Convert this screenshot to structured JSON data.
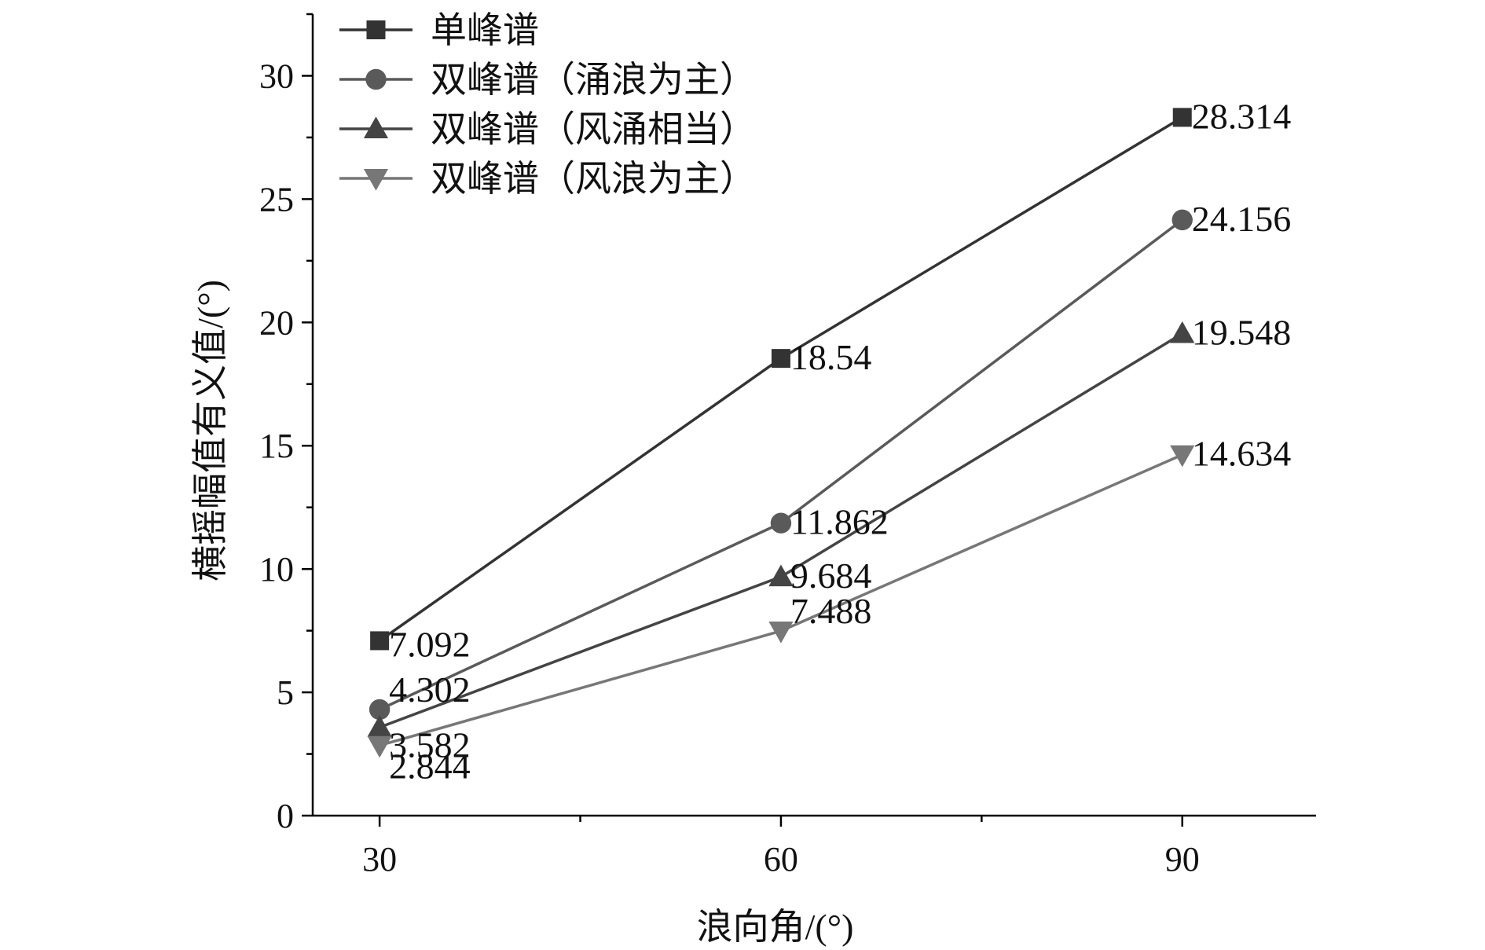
{
  "chart_data": {
    "type": "line",
    "x": [
      30,
      60,
      90
    ],
    "xlabel": "浪向角/(°)",
    "ylabel": "横摇幅值有义值/(°)",
    "xlim": [
      25,
      100
    ],
    "ylim": [
      0,
      32.5
    ],
    "xticks": [
      30,
      60,
      90
    ],
    "yticks": [
      0,
      5,
      10,
      15,
      20,
      25,
      30
    ],
    "grid": false,
    "legend": "top-left",
    "series": [
      {
        "name": "单峰谱",
        "values": [
          7.092,
          18.54,
          28.314
        ],
        "labels": [
          "7.092",
          "18.54",
          "28.314"
        ],
        "marker": "square",
        "color": "#333333"
      },
      {
        "name": "双峰谱（涌浪为主）",
        "values": [
          4.302,
          11.862,
          24.156
        ],
        "labels": [
          "4.302",
          "11.862",
          "24.156"
        ],
        "marker": "circle",
        "color": "#5a5a5a"
      },
      {
        "name": "双峰谱（风涌相当）",
        "values": [
          3.582,
          9.684,
          19.548
        ],
        "labels": [
          "3.582",
          "9.684",
          "19.548"
        ],
        "marker": "triangle-up",
        "color": "#444444"
      },
      {
        "name": "双峰谱（风浪为主）",
        "values": [
          2.844,
          7.488,
          14.634
        ],
        "labels": [
          "2.844",
          "7.488",
          "14.634"
        ],
        "marker": "triangle-down",
        "color": "#777777"
      }
    ]
  }
}
